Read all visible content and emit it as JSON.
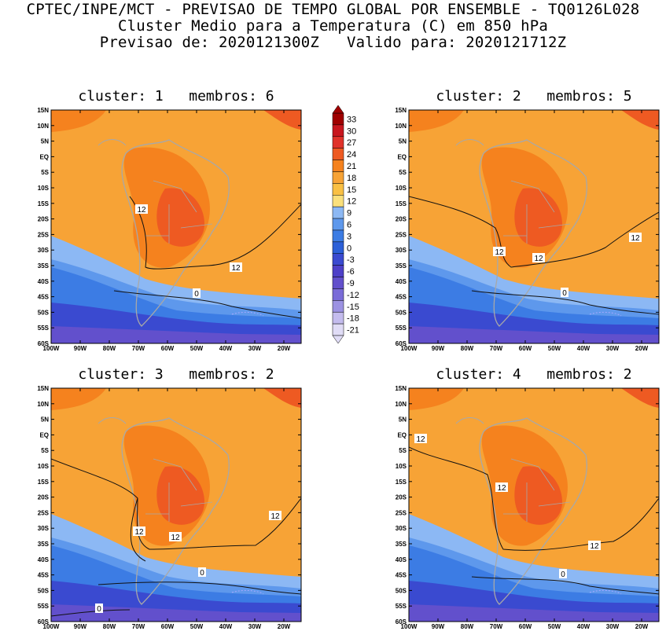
{
  "header": {
    "line1": "CPTEC/INPE/MCT - PREVISAO DE TEMPO GLOBAL POR ENSEMBLE - TQ0126L028",
    "line2": "Cluster Medio para a Temperatura (C) em 850 hPa",
    "line3": "Previsao de: 2020121300Z   Valido para: 2020121712Z"
  },
  "axes": {
    "lat_labels": [
      "15N",
      "10N",
      "5N",
      "EQ",
      "5S",
      "10S",
      "15S",
      "20S",
      "25S",
      "30S",
      "35S",
      "40S",
      "45S",
      "50S",
      "55S",
      "60S"
    ],
    "lon_labels": [
      "100W",
      "90W",
      "80W",
      "70W",
      "60W",
      "50W",
      "40W",
      "30W",
      "20W"
    ]
  },
  "colorbar": {
    "labels": [
      "33",
      "30",
      "27",
      "24",
      "21",
      "18",
      "15",
      "12",
      "9",
      "6",
      "3",
      "0",
      "-3",
      "-6",
      "-9",
      "-12",
      "-15",
      "-18",
      "-21"
    ],
    "colors": [
      "#a00000",
      "#c8161e",
      "#e0322a",
      "#ee5a22",
      "#f5821e",
      "#f7a336",
      "#f9c044",
      "#fae07c",
      "#8cb8f4",
      "#5e98ec",
      "#3c7ce4",
      "#2c60d8",
      "#3a4ad0",
      "#4e40c8",
      "#6250cc",
      "#7a6cd8",
      "#9c92e2",
      "#c4bcee",
      "#e0dcf6"
    ]
  },
  "panels": [
    {
      "title": "cluster: 1   membros: 6",
      "contour_labels": [
        "12",
        "12",
        "0"
      ]
    },
    {
      "title": "cluster: 2   membros: 5",
      "contour_labels": [
        "12",
        "12",
        "12",
        "0"
      ]
    },
    {
      "title": "cluster: 3   membros: 2",
      "contour_labels": [
        "12",
        "12",
        "12",
        "0",
        "0"
      ]
    },
    {
      "title": "cluster: 4   membros: 2",
      "contour_labels": [
        "12",
        "12",
        "12",
        "0"
      ]
    }
  ]
}
